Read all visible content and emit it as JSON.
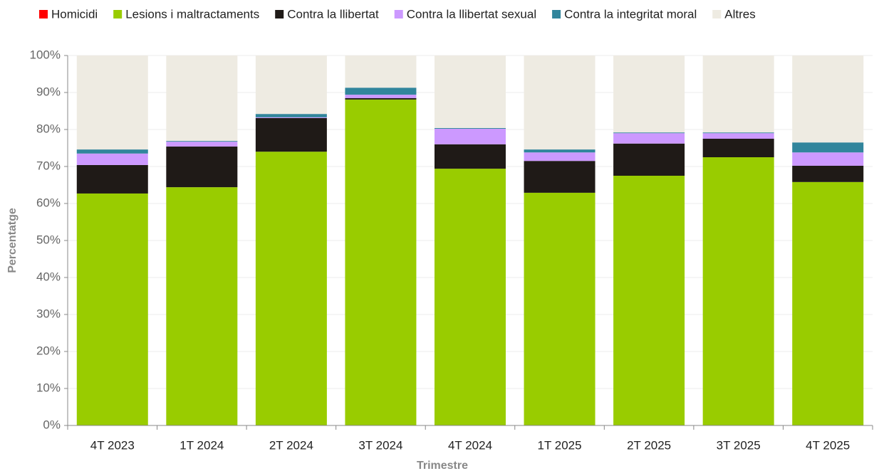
{
  "chart_data": {
    "type": "stacked_bar",
    "categories": [
      "4T 2023",
      "1T 2024",
      "2T 2024",
      "3T 2024",
      "4T 2024",
      "1T 2025",
      "2T 2025",
      "3T 2025",
      "4T 2025"
    ],
    "series": [
      {
        "name": "Homicidi",
        "color": "#ff0000",
        "values": [
          0,
          0,
          0,
          0,
          0,
          0,
          0,
          0,
          0
        ]
      },
      {
        "name": "Lesions i maltractaments",
        "color": "#99cc00",
        "values": [
          62.7,
          64.4,
          74.0,
          88.1,
          69.4,
          62.9,
          67.5,
          72.5,
          65.8
        ]
      },
      {
        "name": "Contra la llibertat",
        "color": "#1f1a17",
        "values": [
          7.7,
          11.0,
          9.1,
          0.4,
          6.6,
          8.6,
          8.7,
          5.0,
          4.4
        ]
      },
      {
        "name": "Contra la llibertat sexual",
        "color": "#cc99ff",
        "values": [
          3.1,
          1.3,
          0.2,
          0.9,
          4.2,
          2.3,
          2.8,
          1.5,
          3.6
        ]
      },
      {
        "name": "Contra la integritat moral",
        "color": "#31859c",
        "values": [
          1.1,
          0.2,
          0.9,
          1.9,
          0.2,
          0.8,
          0.2,
          0.2,
          2.7
        ]
      },
      {
        "name": "Altres",
        "color": "#eeebe2",
        "values": [
          25.4,
          23.1,
          15.8,
          8.7,
          19.6,
          25.4,
          20.8,
          20.8,
          23.5
        ]
      }
    ],
    "ylim": [
      0,
      100
    ],
    "yticks": [
      {
        "value": 0,
        "label": "0%"
      },
      {
        "value": 10,
        "label": "10%"
      },
      {
        "value": 20,
        "label": "20%"
      },
      {
        "value": 30,
        "label": "30%"
      },
      {
        "value": 40,
        "label": "40%"
      },
      {
        "value": 50,
        "label": "50%"
      },
      {
        "value": 60,
        "label": "60%"
      },
      {
        "value": 70,
        "label": "70%"
      },
      {
        "value": 80,
        "label": "80%"
      },
      {
        "value": 90,
        "label": "90%"
      },
      {
        "value": 100,
        "label": "100%"
      }
    ],
    "ylabel": "Percentatge",
    "xlabel": "Trimestre",
    "grid": true,
    "legend": "top"
  }
}
